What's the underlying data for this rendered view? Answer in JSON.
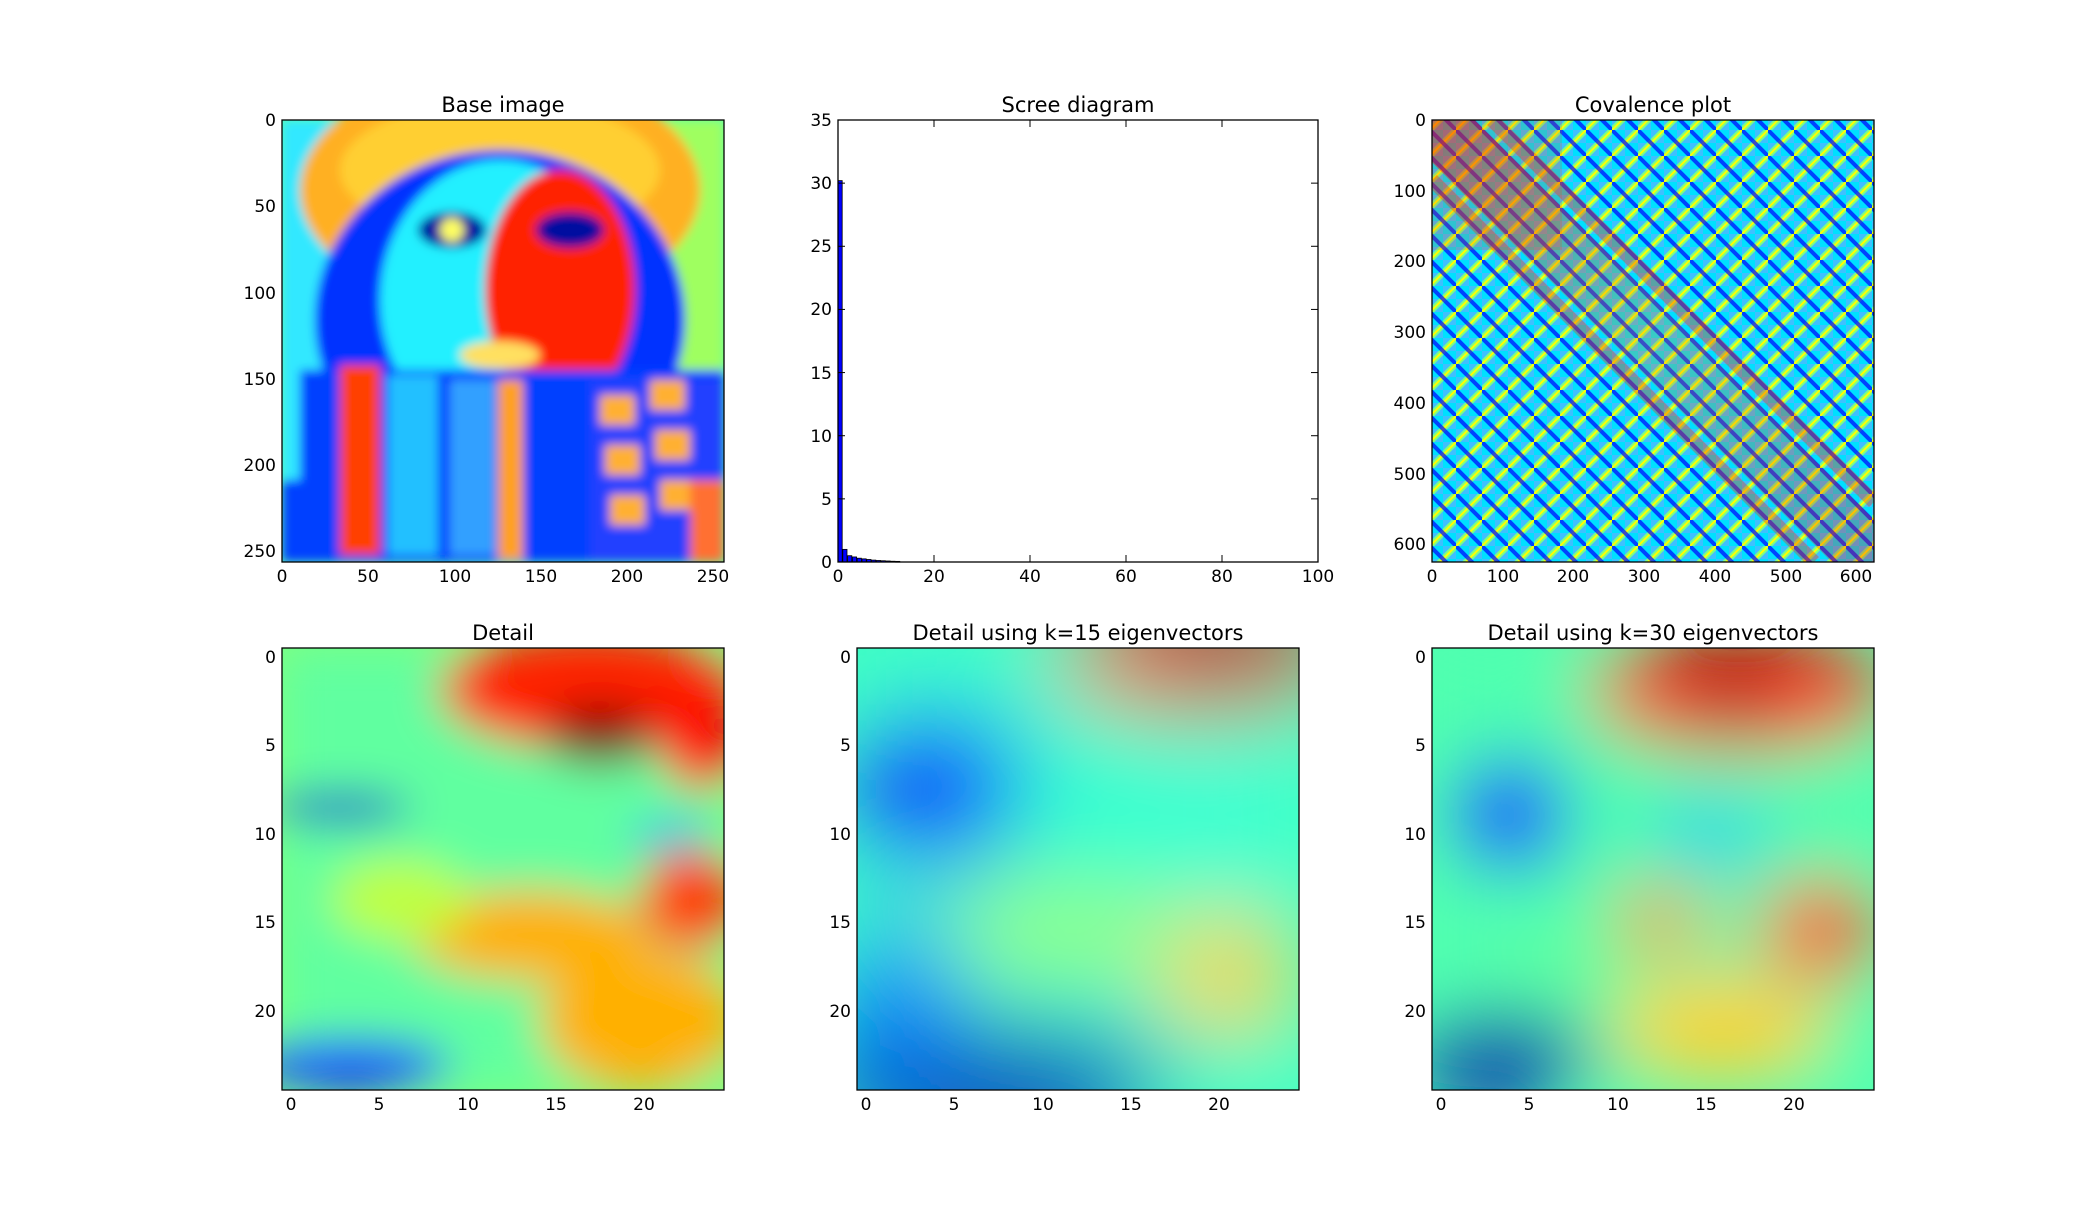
{
  "colormap": [
    "#00007f",
    "#0000ff",
    "#007fff",
    "#00ffff",
    "#7fff7f",
    "#ffff00",
    "#ff7f00",
    "#ff0000",
    "#7f0000"
  ],
  "chart_data": [
    {
      "type": "heatmap",
      "title": "Base image",
      "xlabel": "",
      "ylabel": "",
      "xlim": [
        0,
        256
      ],
      "ylim": [
        256,
        0
      ],
      "xticks": [
        0,
        50,
        100,
        150,
        200,
        250
      ],
      "yticks": [
        0,
        50,
        100,
        150,
        200,
        250
      ],
      "grid": false,
      "colormap": "jet"
    },
    {
      "type": "bar",
      "title": "Scree diagram",
      "xlabel": "",
      "ylabel": "",
      "xlim": [
        0,
        100
      ],
      "ylim": [
        0,
        35
      ],
      "xticks": [
        0,
        20,
        40,
        60,
        80,
        100
      ],
      "yticks": [
        0,
        5,
        10,
        15,
        20,
        25,
        30,
        35
      ],
      "grid": false,
      "x": [
        0,
        1,
        2,
        3,
        4,
        5,
        6,
        7,
        8,
        9,
        10,
        11,
        12
      ],
      "values": [
        30.2,
        1.0,
        0.5,
        0.4,
        0.3,
        0.25,
        0.2,
        0.15,
        0.12,
        0.1,
        0.08,
        0.06,
        0.05
      ]
    },
    {
      "type": "heatmap",
      "title": "Covalence plot",
      "xlabel": "",
      "ylabel": "",
      "xlim": [
        0,
        625
      ],
      "ylim": [
        625,
        0
      ],
      "xticks": [
        0,
        100,
        200,
        300,
        400,
        500,
        600
      ],
      "yticks": [
        0,
        100,
        200,
        300,
        400,
        500,
        600
      ],
      "grid": false,
      "colormap": "jet"
    },
    {
      "type": "heatmap",
      "title": "Detail",
      "xlabel": "",
      "ylabel": "",
      "xlim": [
        -0.5,
        24.5
      ],
      "ylim": [
        24.5,
        -0.5
      ],
      "xticks": [
        0,
        5,
        10,
        15,
        20
      ],
      "yticks": [
        0,
        5,
        10,
        15,
        20
      ],
      "grid": false,
      "colormap": "jet"
    },
    {
      "type": "heatmap",
      "title": "Detail using k=15 eigenvectors",
      "xlabel": "",
      "ylabel": "",
      "xlim": [
        -0.5,
        24.5
      ],
      "ylim": [
        24.5,
        -0.5
      ],
      "xticks": [
        0,
        5,
        10,
        15,
        20
      ],
      "yticks": [
        0,
        5,
        10,
        15,
        20
      ],
      "grid": false,
      "colormap": "jet"
    },
    {
      "type": "heatmap",
      "title": "Detail using k=30 eigenvectors",
      "xlabel": "",
      "ylabel": "",
      "xlim": [
        -0.5,
        24.5
      ],
      "ylim": [
        24.5,
        -0.5
      ],
      "xticks": [
        0,
        5,
        10,
        15,
        20
      ],
      "yticks": [
        0,
        5,
        10,
        15,
        20
      ],
      "grid": false,
      "colormap": "jet"
    }
  ]
}
